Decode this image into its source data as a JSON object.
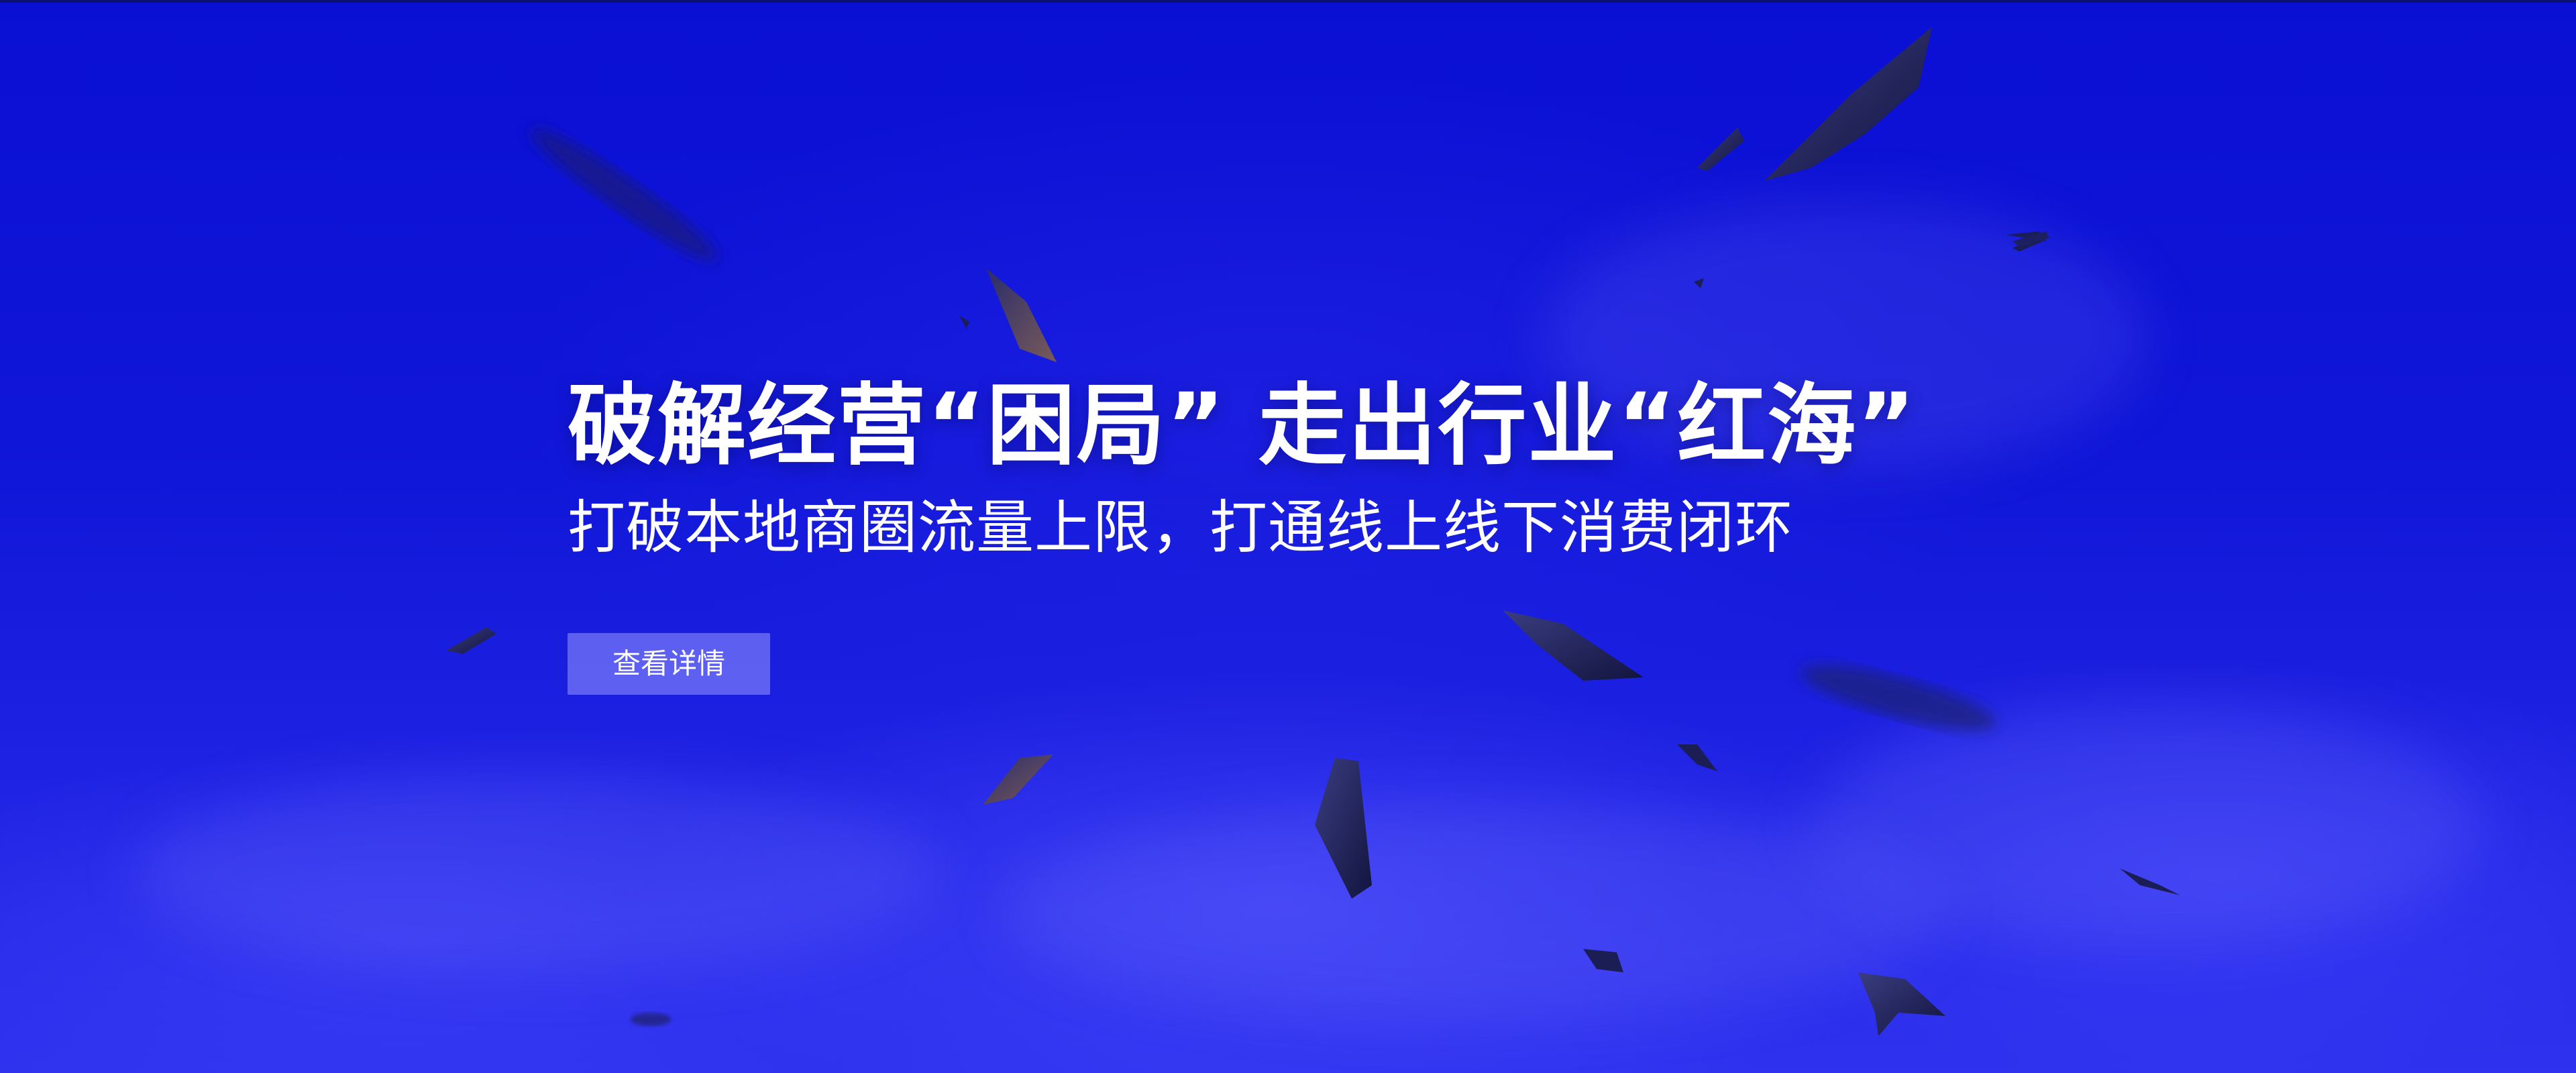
{
  "banner": {
    "headline": "破解经营“困局” 走出行业“红海”",
    "subheadline": "打破本地商圈流量上限，打通线上线下消费闭环",
    "cta_label": "查看详情"
  },
  "colors": {
    "background": "#0a0fd4",
    "background_bottom": "#2f33ee",
    "text": "#ffffff",
    "button_bg": "#8c8cff",
    "shard": "#1a1d5a"
  },
  "icons": {
    "decorations": "floating-shard-icon"
  }
}
